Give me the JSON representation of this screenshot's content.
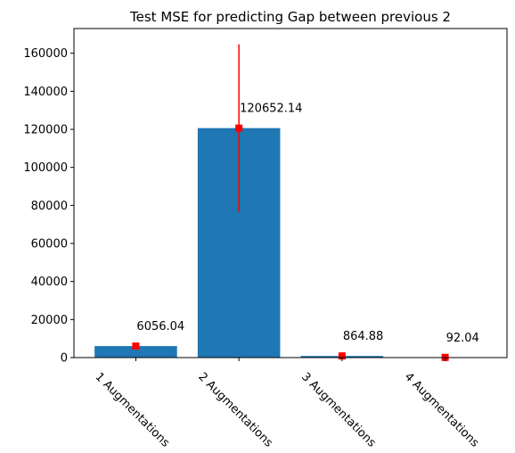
{
  "chart_data": {
    "type": "bar",
    "title": "Test MSE for predicting Gap between previous 2",
    "xlabel": "",
    "ylabel": "",
    "categories": [
      "1 Augmentations",
      "2 Augmentations",
      "3 Augmentations",
      "4 Augmentations"
    ],
    "values": [
      6056.04,
      120652.14,
      864.88,
      92.04
    ],
    "error": [
      1500,
      44000,
      300,
      60
    ],
    "data_labels": [
      "6056.04",
      "120652.14",
      "864.88",
      "92.04"
    ],
    "ylim": [
      0,
      173000
    ],
    "yticks": [
      0,
      20000,
      40000,
      60000,
      80000,
      100000,
      120000,
      140000,
      160000
    ],
    "ytick_labels": [
      "0",
      "20000",
      "40000",
      "60000",
      "80000",
      "100000",
      "120000",
      "140000",
      "160000"
    ],
    "grid": false,
    "colors": {
      "bar": "#1f77b4",
      "error": "#ff0000",
      "axis": "#000000"
    }
  }
}
